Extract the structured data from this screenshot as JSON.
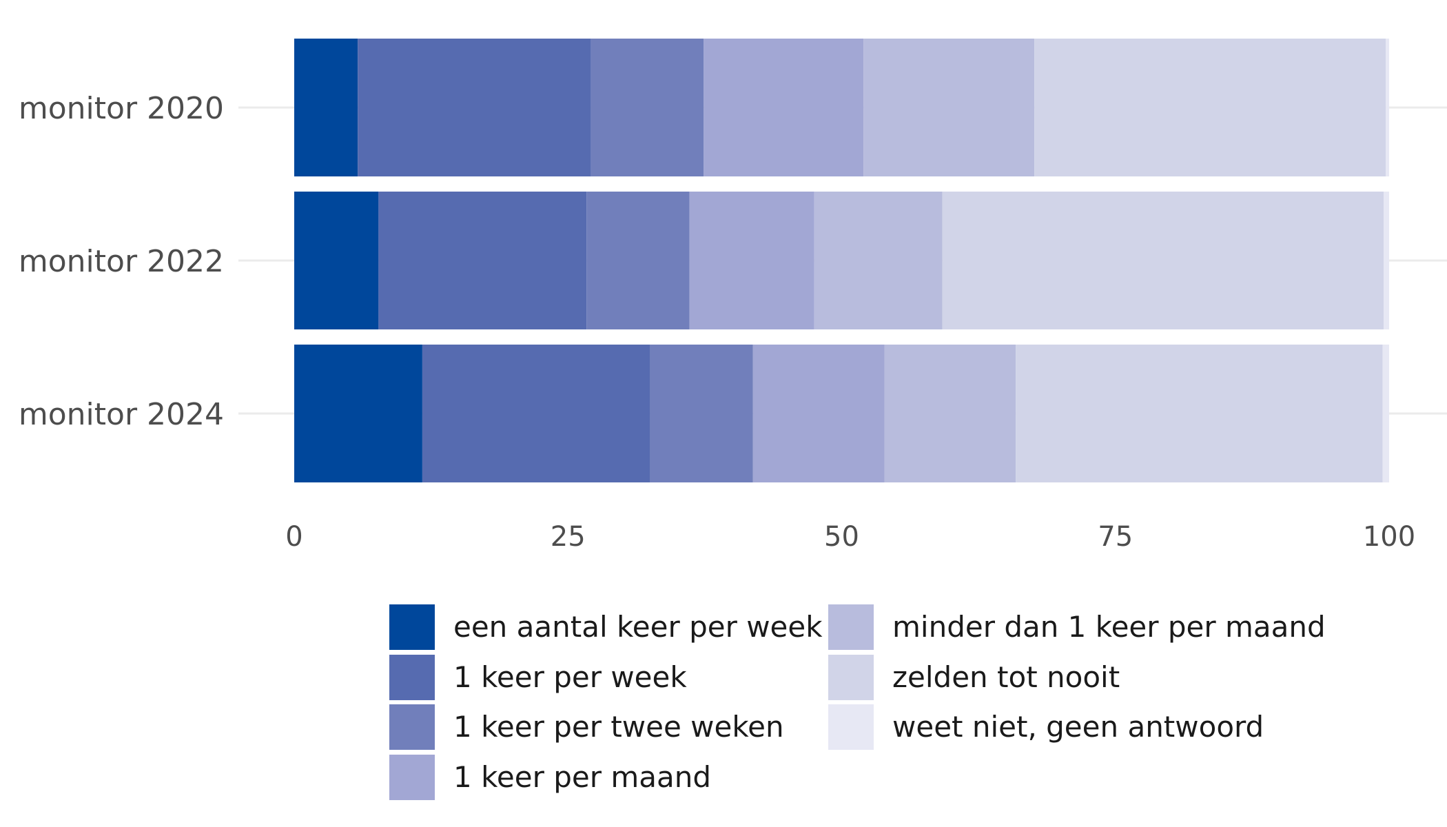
{
  "chart_data": {
    "type": "bar",
    "orientation": "horizontal",
    "stacked": true,
    "categories": [
      "monitor 2020",
      "monitor 2022",
      "monitor 2024"
    ],
    "xlim": [
      0,
      100
    ],
    "x_ticks": [
      0,
      25,
      50,
      75,
      100
    ],
    "grid": true,
    "legend_position": "bottom",
    "series": [
      {
        "name": "een aantal keer per week",
        "color": "#00479B",
        "values": [
          5.8,
          7.7,
          11.7
        ]
      },
      {
        "name": "1 keer per week",
        "color": "#566BB0",
        "values": [
          21.3,
          19.0,
          20.8
        ]
      },
      {
        "name": "1 keer per twee weken",
        "color": "#717FBB",
        "values": [
          10.3,
          9.4,
          9.4
        ]
      },
      {
        "name": "1 keer per maand",
        "color": "#A2A7D4",
        "values": [
          14.6,
          11.4,
          12.0
        ]
      },
      {
        "name": "minder dan 1 keer per maand",
        "color": "#B8BCDD",
        "values": [
          15.6,
          11.7,
          12.0
        ]
      },
      {
        "name": "zelden tot nooit",
        "color": "#D1D4E8",
        "values": [
          32.1,
          40.3,
          33.5
        ]
      },
      {
        "name": "weet niet, geen antwoord",
        "color": "#E7E8F4",
        "values": [
          0.3,
          0.5,
          0.6
        ]
      }
    ]
  }
}
